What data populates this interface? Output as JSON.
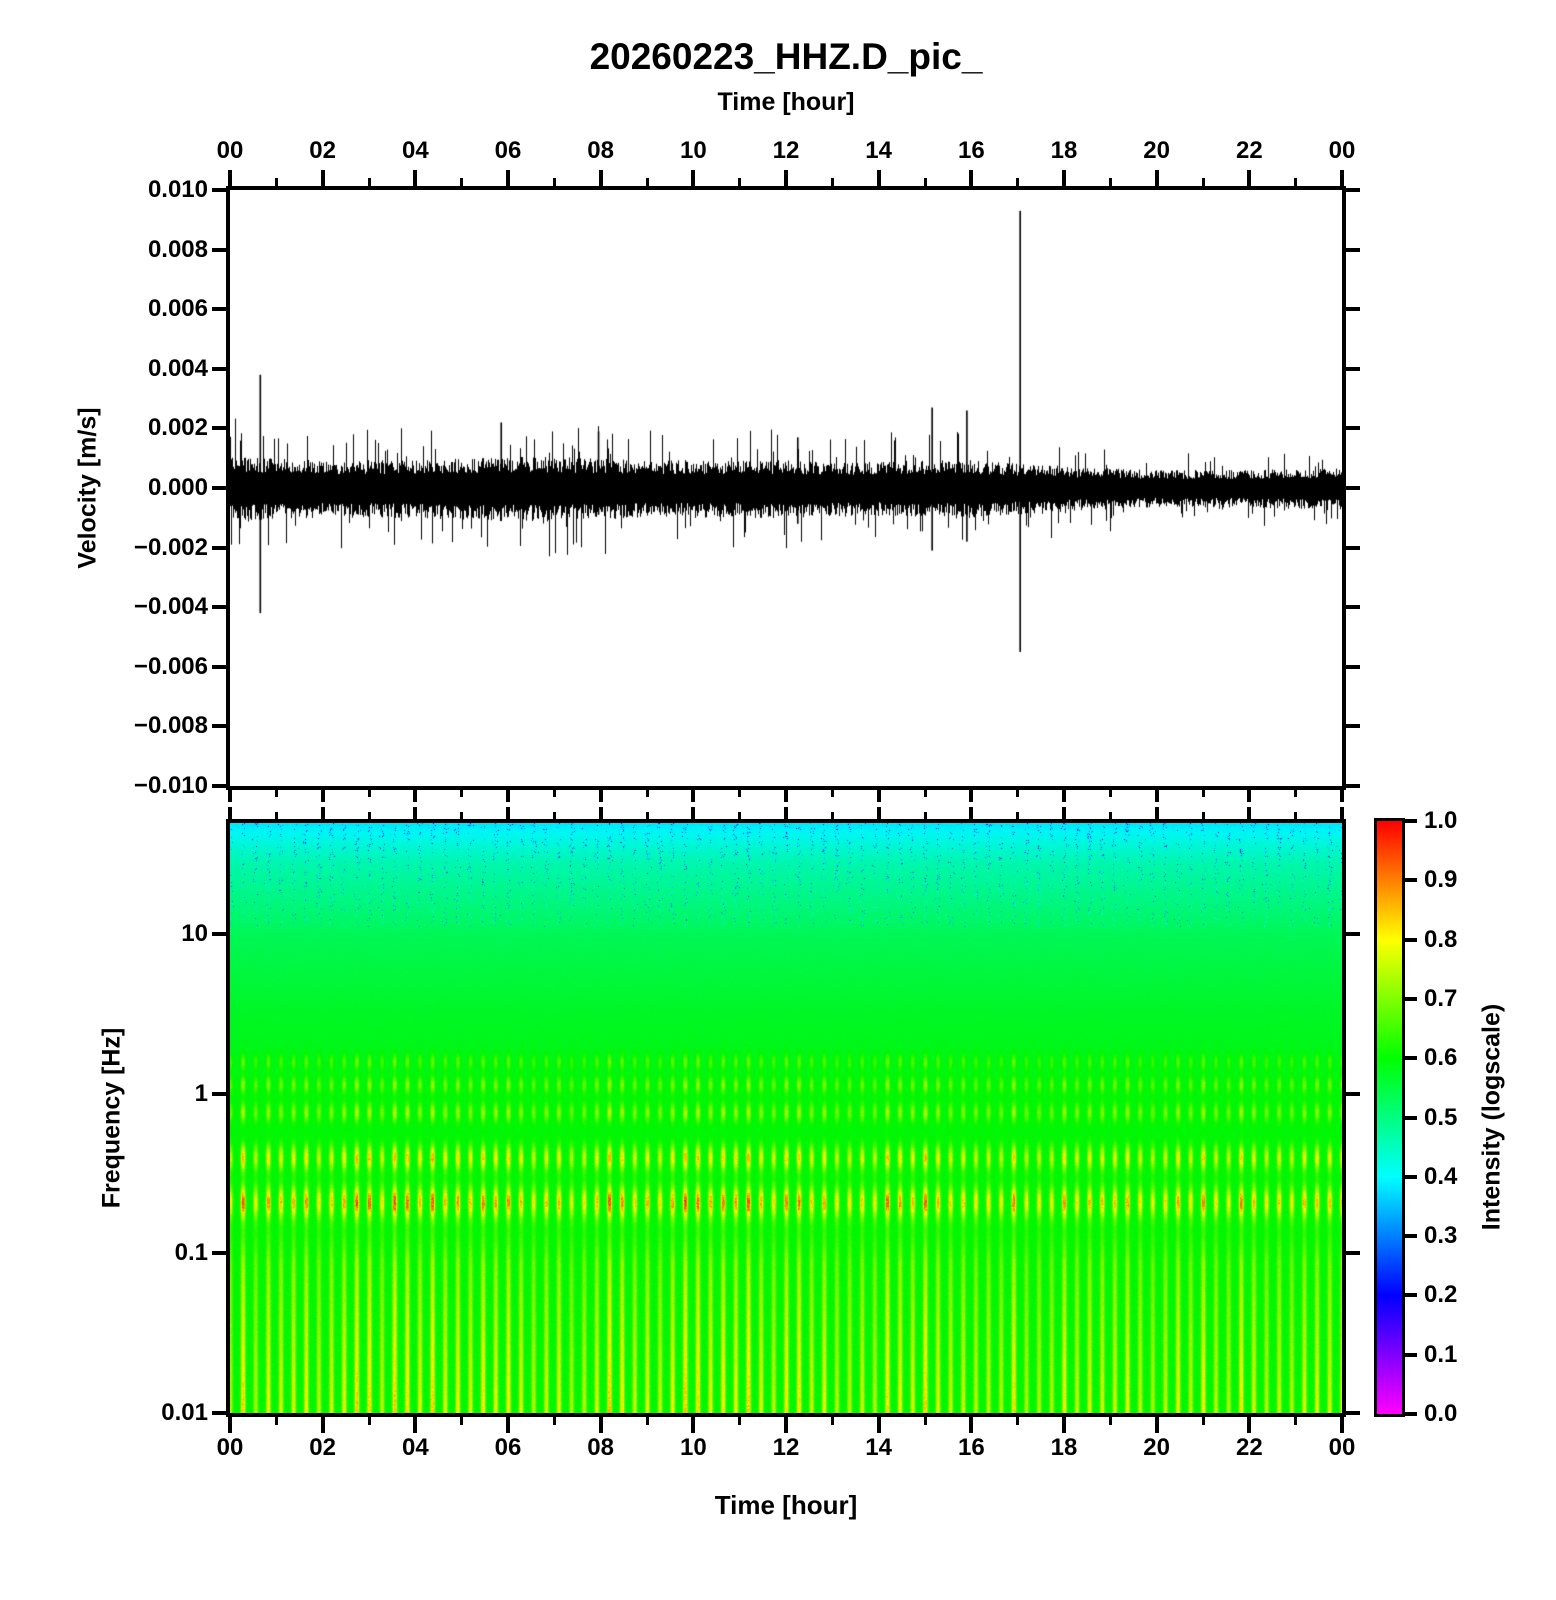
{
  "figure": {
    "title": "20260223_HHZ.D_pic_",
    "top_axis_title": "Time [hour]",
    "bottom_axis_title": "Time [hour]"
  },
  "waveform_panel": {
    "ylabel": "Velocity [m/s]",
    "y_tick_labels": [
      "0.010",
      "0.008",
      "0.006",
      "0.004",
      "0.002",
      "0.000",
      "−0.002",
      "−0.004",
      "−0.006",
      "−0.008",
      "−0.010"
    ],
    "x_tick_labels": [
      "00",
      "02",
      "04",
      "06",
      "08",
      "10",
      "12",
      "14",
      "16",
      "18",
      "20",
      "22",
      "00"
    ]
  },
  "spectrogram_panel": {
    "ylabel": "Frequency [Hz]",
    "y_tick_labels": [
      "10",
      "1",
      "0.1",
      "0.01"
    ],
    "x_tick_labels": [
      "00",
      "02",
      "04",
      "06",
      "08",
      "10",
      "12",
      "14",
      "16",
      "18",
      "20",
      "22",
      "00"
    ]
  },
  "colorbar": {
    "label": "Intensity (logscale)",
    "tick_labels": [
      "1.0",
      "0.9",
      "0.8",
      "0.7",
      "0.6",
      "0.5",
      "0.4",
      "0.3",
      "0.2",
      "0.1",
      "0.0"
    ],
    "gradient_stops": [
      {
        "value": 0.0,
        "color": "#ff00ff"
      },
      {
        "value": 0.2,
        "color": "#0000ff"
      },
      {
        "value": 0.4,
        "color": "#00ffff"
      },
      {
        "value": 0.6,
        "color": "#00ff00"
      },
      {
        "value": 0.8,
        "color": "#ffff00"
      },
      {
        "value": 1.0,
        "color": "#ff0000"
      }
    ]
  },
  "chart_data": [
    {
      "type": "line",
      "title": "20260223_HHZ.D_pic_",
      "xlabel": "Time [hour]",
      "ylabel": "Velocity [m/s]",
      "xlim": [
        0,
        24
      ],
      "ylim": [
        -0.01,
        0.01
      ],
      "x_major_tick_step_hours": 2,
      "x_minor_tick_step_hours": 1,
      "y_major_tick_step": 0.002,
      "series_description": "continuous broadband seismic noise, dense black band around zero",
      "noise_envelope_by_hour": [
        0.00095,
        0.0009,
        0.00085,
        0.00085,
        0.00085,
        0.0009,
        0.00095,
        0.00095,
        0.0009,
        0.00085,
        0.00085,
        0.00085,
        0.00085,
        0.0008,
        0.0008,
        0.00085,
        0.00085,
        0.00075,
        0.00065,
        0.0006,
        0.00055,
        0.00055,
        0.00055,
        0.0006,
        0.0006
      ],
      "spikes": [
        {
          "hour": 0.65,
          "peak": 0.0038,
          "trough": -0.0042
        },
        {
          "hour": 5.85,
          "peak": 0.0022,
          "trough": -0.001
        },
        {
          "hour": 7.95,
          "peak": 0.0019,
          "trough": -0.0009
        },
        {
          "hour": 12.25,
          "peak": 0.0017,
          "trough": -0.0012
        },
        {
          "hour": 15.15,
          "peak": 0.0027,
          "trough": -0.0021
        },
        {
          "hour": 15.9,
          "peak": 0.0026,
          "trough": -0.0018
        },
        {
          "hour": 17.05,
          "peak": 0.0093,
          "trough": -0.0055
        }
      ]
    },
    {
      "type": "heatmap",
      "xlabel": "Time [hour]",
      "ylabel": "Frequency [Hz]",
      "xlim_hours": [
        0,
        24
      ],
      "freq_range_hz": [
        0.01,
        50
      ],
      "yscale": "log",
      "colormap": "rainbow: 0.0 magenta, 0.2 blue, 0.4 cyan, 0.6 green, 0.8 yellow, 1.0 red",
      "intensity_range": [
        0.0,
        1.0
      ],
      "base_intensity_vs_log10freq": [
        [
          1.7,
          0.385
        ],
        [
          1.45,
          0.46
        ],
        [
          1.0,
          0.53
        ],
        [
          0.5,
          0.57
        ],
        [
          0.0,
          0.595
        ],
        [
          -1.0,
          0.6
        ],
        [
          -2.0,
          0.6
        ]
      ],
      "stripe_period_hours": 0.2727,
      "stripe_bands": [
        {
          "freq_hz": 1.6,
          "gain": 0.1,
          "log_width": 0.035
        },
        {
          "freq_hz": 1.15,
          "gain": 0.13,
          "log_width": 0.035
        },
        {
          "freq_hz": 0.77,
          "gain": 0.15,
          "log_width": 0.04
        },
        {
          "freq_hz": 0.4,
          "gain": 0.26,
          "log_width": 0.055
        },
        {
          "freq_hz": 0.21,
          "gain": 0.34,
          "log_width": 0.07
        }
      ],
      "low_freq_stripes": {
        "below_hz": 0.15,
        "gain_at_0.1hz": 0.13,
        "gain_at_0.01hz": 0.24
      },
      "colorbar_label": "Intensity (logscale)"
    }
  ]
}
